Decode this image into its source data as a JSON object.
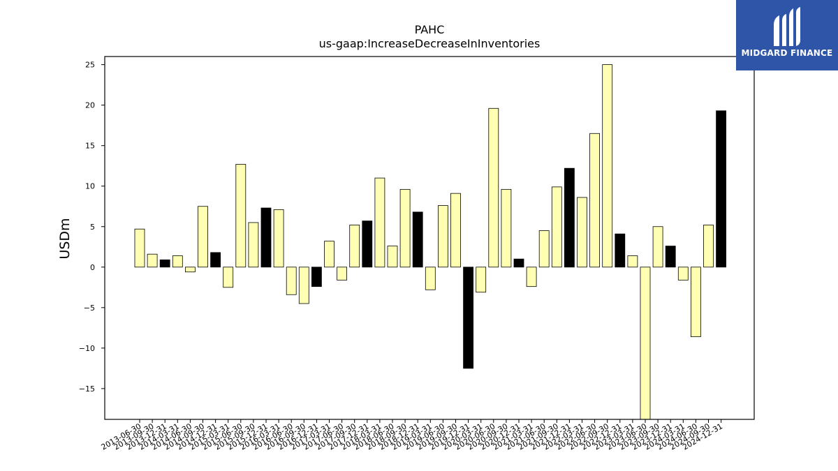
{
  "chart_data": {
    "type": "bar",
    "title": "PAHC",
    "subtitle": "us-gaap:IncreaseDecreaseInInventories",
    "xlabel": "",
    "ylabel": "USDm",
    "ylim": [
      -18.8,
      26
    ],
    "yticks": [
      -15,
      -10,
      -5,
      0,
      5,
      10,
      15,
      20,
      25
    ],
    "grid": false,
    "colors": {
      "quarterly": "#ffffb3",
      "annual": "#000000",
      "edge": "#000000"
    },
    "categories": [
      "2013-06-30",
      "2013-09-30",
      "2013-12-31",
      "2014-03-31",
      "2014-06-30",
      "2014-09-30",
      "2014-12-31",
      "2015-03-31",
      "2015-06-30",
      "2015-09-30",
      "2015-12-31",
      "2016-03-31",
      "2016-06-30",
      "2016-09-30",
      "2016-12-31",
      "2017-03-31",
      "2017-06-30",
      "2017-09-30",
      "2017-12-31",
      "2018-03-31",
      "2018-06-30",
      "2018-09-30",
      "2018-12-31",
      "2019-03-31",
      "2019-06-30",
      "2019-09-30",
      "2019-12-31",
      "2020-03-31",
      "2020-06-30",
      "2020-09-30",
      "2020-12-31",
      "2021-03-31",
      "2021-06-30",
      "2021-09-30",
      "2021-12-31",
      "2022-03-31",
      "2022-06-30",
      "2022-09-30",
      "2022-12-31",
      "2023-03-31",
      "2023-06-30",
      "2023-09-30",
      "2023-12-31",
      "2024-03-31",
      "2024-06-30",
      "2024-09-30",
      "2024-12-31"
    ],
    "values": [
      4.7,
      1.6,
      0.9,
      1.4,
      -0.6,
      7.5,
      1.8,
      -2.5,
      12.7,
      5.5,
      7.3,
      7.1,
      -3.4,
      -4.5,
      -2.4,
      3.2,
      -1.6,
      5.2,
      5.7,
      11.0,
      2.6,
      9.6,
      6.8,
      -2.8,
      7.6,
      9.1,
      -12.5,
      -3.1,
      19.6,
      9.6,
      1.0,
      -2.4,
      4.5,
      9.9,
      12.2,
      8.6,
      16.5,
      25.0,
      4.1,
      1.4,
      -18.8,
      5.0,
      2.6,
      -1.6,
      -8.6,
      5.2,
      19.3
    ],
    "highlight": [
      false,
      false,
      true,
      false,
      false,
      false,
      true,
      false,
      false,
      false,
      true,
      false,
      false,
      false,
      true,
      false,
      false,
      false,
      true,
      false,
      false,
      false,
      true,
      false,
      false,
      false,
      true,
      false,
      false,
      false,
      true,
      false,
      false,
      false,
      true,
      false,
      false,
      false,
      true,
      false,
      false,
      false,
      true,
      false,
      false,
      false,
      true
    ]
  },
  "logo": {
    "text": "MIDGARD FINANCE",
    "icon": "midgard-logo-icon"
  }
}
